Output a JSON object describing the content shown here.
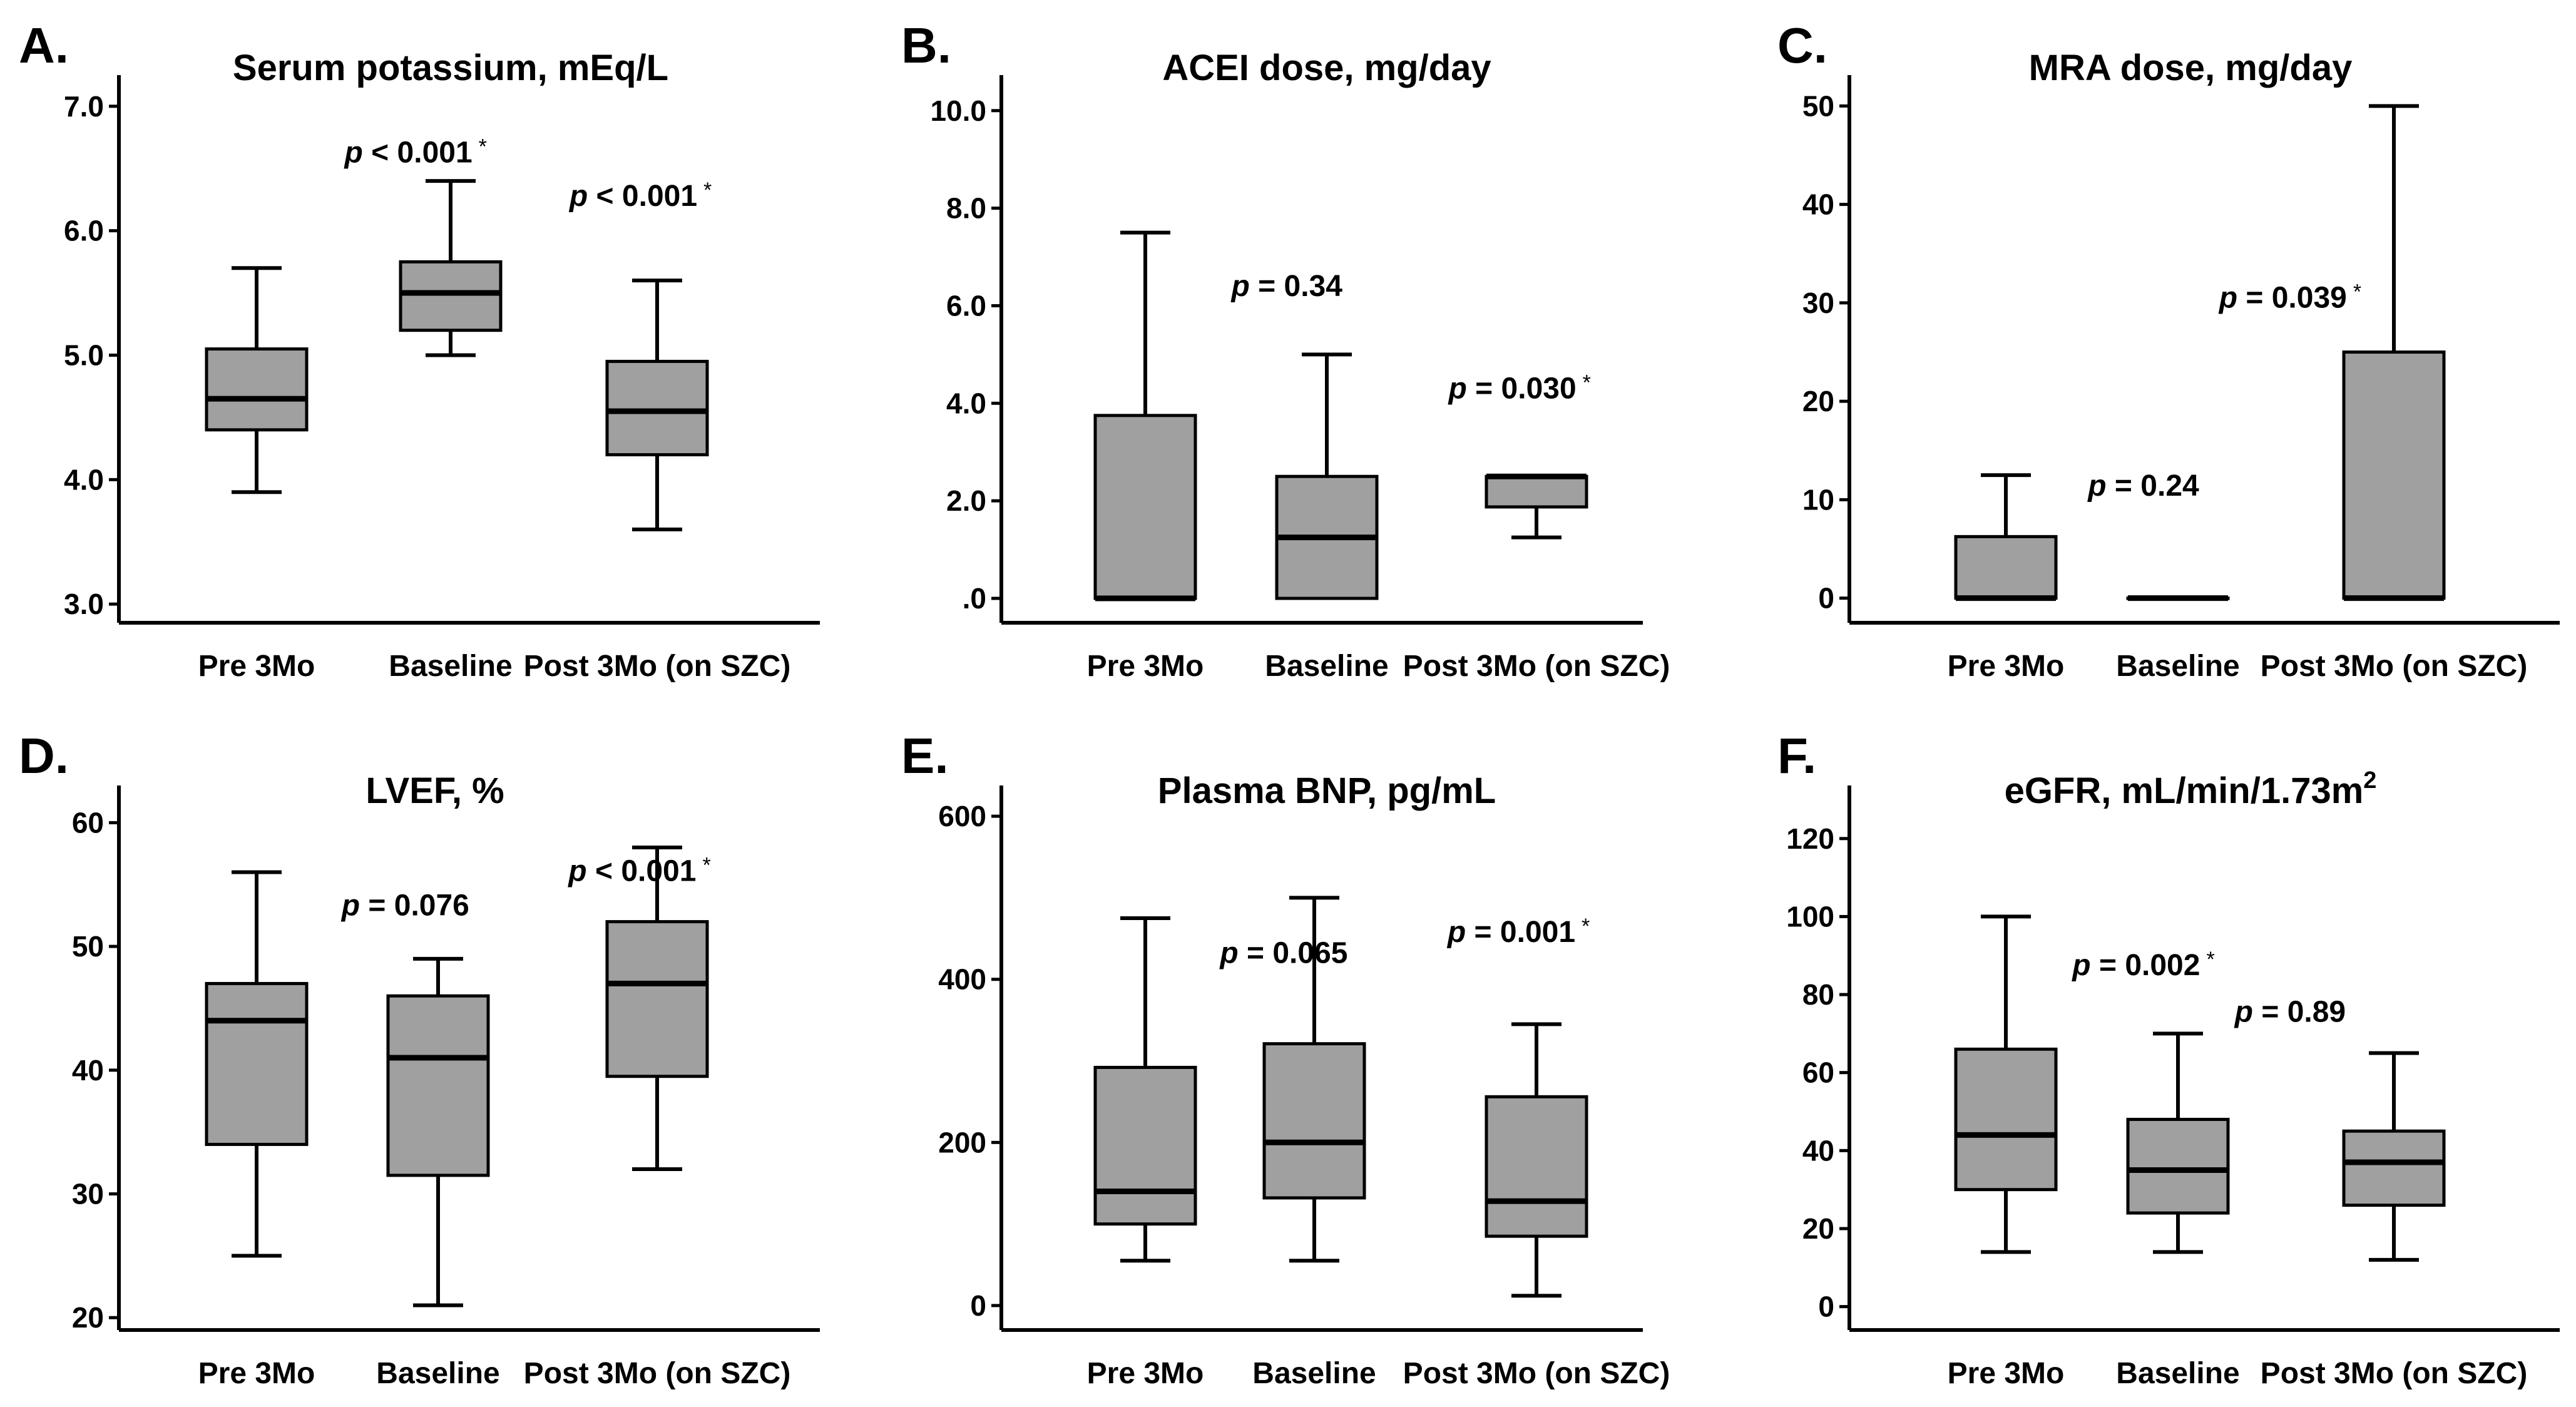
{
  "chart_data": [
    {
      "panel": "A.",
      "type": "box",
      "title": "Serum potassium, mEq/L",
      "title_sup": "",
      "categories": [
        "Pre 3Mo",
        "Baseline",
        "Post 3Mo (on SZC)"
      ],
      "ylim": [
        2.85,
        7.2
      ],
      "yticks": [
        3.0,
        4.0,
        5.0,
        6.0,
        7.0
      ],
      "ytick_labels": [
        "3.0",
        "4.0",
        "5.0",
        "6.0",
        "7.0"
      ],
      "boxes": [
        {
          "min": 3.9,
          "q1": 4.4,
          "median": 4.65,
          "q3": 5.05,
          "max": 5.7
        },
        {
          "min": 5.0,
          "q1": 5.2,
          "median": 5.5,
          "q3": 5.75,
          "max": 6.4
        },
        {
          "min": 3.6,
          "q1": 4.2,
          "median": 4.55,
          "q3": 4.95,
          "max": 5.6
        }
      ],
      "annotations": [
        {
          "p": "p",
          "text": " < 0.001",
          "star": "*",
          "cat": 0.82,
          "y": 6.55
        },
        {
          "p": "p",
          "text": " < 0.001",
          "star": "*",
          "cat": 1.92,
          "y": 6.2
        }
      ]
    },
    {
      "panel": "B.",
      "type": "box",
      "title": "ACEI dose, mg/day",
      "title_sup": "",
      "categories": [
        "Pre 3Mo",
        "Baseline",
        "Post 3Mo (on SZC)"
      ],
      "ylim": [
        -0.5,
        10.6
      ],
      "yticks": [
        0,
        2,
        4,
        6,
        8,
        10
      ],
      "ytick_labels": [
        ".0",
        "2.0",
        "4.0",
        "6.0",
        "8.0",
        "10.0"
      ],
      "boxes": [
        {
          "min": 0.0,
          "q1": 0.0,
          "median": 0.0,
          "q3": 3.75,
          "max": 7.5
        },
        {
          "min": 0.0,
          "q1": 0.0,
          "median": 1.25,
          "q3": 2.5,
          "max": 5.0
        },
        {
          "min": 1.25,
          "q1": 1.875,
          "median": 2.5,
          "q3": 2.5,
          "max": 2.5
        }
      ],
      "annotations": [
        {
          "p": "p",
          "text": " = 0.34",
          "star": "",
          "cat": 0.78,
          "y": 6.2
        },
        {
          "p": "p",
          "text": " = 0.030",
          "star": "*",
          "cat": 1.92,
          "y": 4.1
        }
      ]
    },
    {
      "panel": "C.",
      "type": "box",
      "title": "MRA dose, mg/day",
      "title_sup": "",
      "categories": [
        "Pre 3Mo",
        "Baseline",
        "Post 3Mo (on SZC)"
      ],
      "ylim": [
        -2.5,
        52.5
      ],
      "yticks": [
        0,
        10,
        20,
        30,
        40,
        50
      ],
      "ytick_labels": [
        "0",
        "10",
        "20",
        "30",
        "40",
        "50"
      ],
      "boxes": [
        {
          "min": 0.0,
          "q1": 0.0,
          "median": 0.0,
          "q3": 6.25,
          "max": 12.5
        },
        {
          "min": 0.0,
          "q1": 0.0,
          "median": 0.0,
          "q3": 0.0,
          "max": 0.0
        },
        {
          "min": 0.0,
          "q1": 0.0,
          "median": 0.0,
          "q3": 25.0,
          "max": 50.0
        }
      ],
      "annotations": [
        {
          "p": "p",
          "text": " = 0.24",
          "star": "",
          "cat": 0.8,
          "y": 10.4
        },
        {
          "p": "p",
          "text": " = 0.039",
          "star": "*",
          "cat": 1.52,
          "y": 29.5
        }
      ]
    },
    {
      "panel": "D.",
      "type": "box",
      "title": "LVEF, %",
      "title_sup": "",
      "categories": [
        "Pre 3Mo",
        "Baseline",
        "Post 3Mo (on SZC)"
      ],
      "ylim": [
        19,
        62.5
      ],
      "yticks": [
        20,
        30,
        40,
        50,
        60
      ],
      "ytick_labels": [
        "20",
        "30",
        "40",
        "50",
        "60"
      ],
      "boxes": [
        {
          "min": 25,
          "q1": 34,
          "median": 44,
          "q3": 47,
          "max": 56
        },
        {
          "min": 21,
          "q1": 31.5,
          "median": 41,
          "q3": 46,
          "max": 49
        },
        {
          "min": 32,
          "q1": 39.5,
          "median": 47,
          "q3": 52,
          "max": 58
        }
      ],
      "annotations": [
        {
          "p": "p",
          "text": " = 0.076",
          "star": "",
          "cat": 0.82,
          "y": 52.5
        },
        {
          "p": "p",
          "text": " < 0.001",
          "star": "*",
          "cat": 1.92,
          "y": 55.3
        }
      ]
    },
    {
      "panel": "E.",
      "type": "box",
      "title": "Plasma BNP, pg/mL",
      "title_sup": "",
      "categories": [
        "Pre 3Mo",
        "Baseline",
        "Post 3Mo (on SZC)"
      ],
      "ylim": [
        -30,
        630
      ],
      "yticks": [
        0,
        200,
        400,
        600
      ],
      "ytick_labels": [
        "0",
        "200",
        "400",
        "600"
      ],
      "boxes": [
        {
          "min": 55,
          "q1": 100,
          "median": 140,
          "q3": 292,
          "max": 475
        },
        {
          "min": 55,
          "q1": 132,
          "median": 200,
          "q3": 321,
          "max": 500
        },
        {
          "min": 12,
          "q1": 85,
          "median": 128,
          "q3": 256,
          "max": 345
        }
      ],
      "annotations": [
        {
          "p": "p",
          "text": " = 0.065",
          "star": "",
          "cat": 0.82,
          "y": 420
        },
        {
          "p": "p",
          "text": " = 0.001",
          "star": "*",
          "cat": 1.92,
          "y": 446
        }
      ]
    },
    {
      "panel": "F.",
      "type": "box",
      "title": "eGFR, mL/min/1.73m",
      "title_sup": "2",
      "categories": [
        "Pre 3Mo",
        "Baseline",
        "Post 3Mo (on SZC)"
      ],
      "ylim": [
        -6,
        132
      ],
      "yticks": [
        0,
        20,
        40,
        60,
        80,
        100,
        120
      ],
      "ytick_labels": [
        "0",
        "20",
        "40",
        "60",
        "80",
        "100",
        "120"
      ],
      "boxes": [
        {
          "min": 14,
          "q1": 30,
          "median": 44,
          "q3": 66,
          "max": 100
        },
        {
          "min": 14,
          "q1": 24,
          "median": 35,
          "q3": 48,
          "max": 70
        },
        {
          "min": 12,
          "q1": 26,
          "median": 37,
          "q3": 45,
          "max": 65
        }
      ],
      "annotations": [
        {
          "p": "p",
          "text": " = 0.002",
          "star": "*",
          "cat": 0.8,
          "y": 85
        },
        {
          "p": "p",
          "text": " = 0.89",
          "star": "",
          "cat": 1.52,
          "y": 73
        }
      ]
    }
  ]
}
